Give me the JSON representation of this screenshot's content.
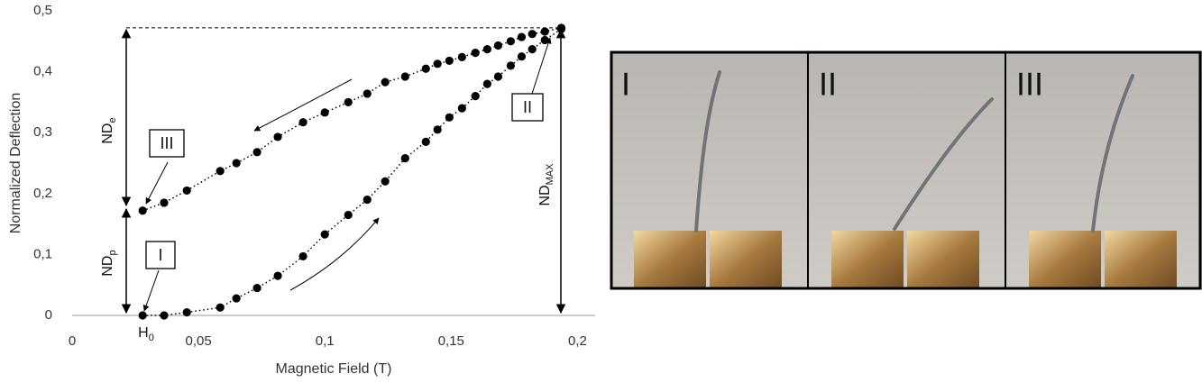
{
  "chart_data": {
    "type": "scatter",
    "x_label": "Magnetic Field (T)",
    "y_label": "Normalized Deflection",
    "x": [
      0.0279,
      0.0364,
      0.0454,
      0.0586,
      0.065,
      0.0732,
      0.0814,
      0.0914,
      0.1,
      0.1093,
      0.1168,
      0.1239,
      0.1318,
      0.14,
      0.1446,
      0.1493,
      0.1543,
      0.1596,
      0.1643,
      0.1686,
      0.1736,
      0.1779,
      0.1821,
      0.1871,
      0.1936
    ],
    "series": [
      {
        "color": "#000000",
        "values": [
          0,
          0,
          0.005,
          0.013,
          0.028,
          0.045,
          0.065,
          0.097,
          0.133,
          0.165,
          0.19,
          0.22,
          0.258,
          0.285,
          0.305,
          0.325,
          0.34,
          0.36,
          0.38,
          0.392,
          0.41,
          0.425,
          0.437,
          0.452,
          0.47
        ]
      },
      {
        "color": "#000000",
        "values": [
          0.172,
          0.185,
          0.205,
          0.237,
          0.25,
          0.268,
          0.293,
          0.317,
          0.333,
          0.35,
          0.364,
          0.383,
          0.392,
          0.405,
          0.413,
          0.418,
          0.424,
          0.431,
          0.437,
          0.443,
          0.45,
          0.457,
          0.462,
          0.466,
          0.472
        ]
      }
    ],
    "xlim": [
      0,
      0.207
    ],
    "ylim": [
      0,
      0.5
    ],
    "xticks": [
      0,
      {
        "value": 0.05,
        "label": "0,05"
      },
      {
        "value": 0.1,
        "label": "0,1"
      },
      {
        "value": 0.15,
        "label": "0,15"
      },
      {
        "value": 0.2,
        "label": "0,2"
      }
    ],
    "yticks": [
      0,
      {
        "value": 0.1,
        "label": "0,1"
      },
      {
        "value": 0.2,
        "label": "0,2"
      },
      {
        "value": 0.3,
        "label": "0,3"
      },
      {
        "value": 0.4,
        "label": "0,4"
      },
      {
        "value": 0.5,
        "label": "0,5"
      }
    ],
    "annotations": {
      "nd_e": {
        "text": "ND",
        "sub": "e"
      },
      "nd_p": {
        "text": "ND",
        "sub": "p"
      },
      "nd_max": {
        "text": "ND",
        "sub": "MAX"
      },
      "h0": {
        "text": "H",
        "sub": "0"
      },
      "box_1": "I",
      "box_2": "II",
      "box_3": "III"
    }
  },
  "photos": [
    "I",
    "II",
    "III"
  ]
}
